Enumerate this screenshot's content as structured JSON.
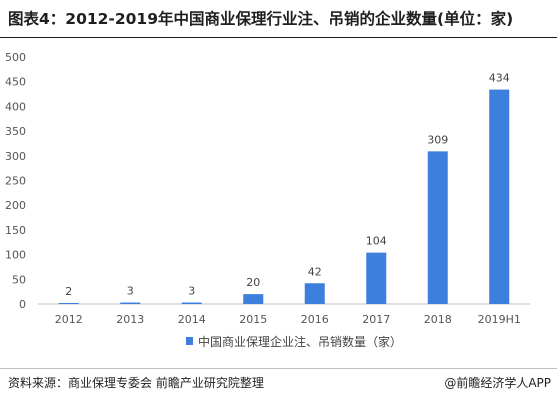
{
  "header": {
    "title": "图表4：2012-2019年中国商业保理行业注、吊销的企业数量(单位：家)"
  },
  "footer": {
    "source": "资料来源：商业保理专委会 前瞻产业研究院整理",
    "credit": "@前瞻经济学人APP"
  },
  "colors": {
    "bar": "#3d7fdc",
    "axis": "#bfbfbf"
  },
  "chart_data": {
    "type": "bar",
    "title": "",
    "xlabel": "",
    "ylabel": "",
    "categories": [
      "2012",
      "2013",
      "2014",
      "2015",
      "2016",
      "2017",
      "2018",
      "2019H1"
    ],
    "series": [
      {
        "name": "中国商业保理企业注、吊销数量（家）",
        "values": [
          2,
          3,
          3,
          20,
          42,
          104,
          309,
          434
        ]
      }
    ],
    "ylim": [
      0,
      500
    ],
    "yticks": [
      0,
      50,
      100,
      150,
      200,
      250,
      300,
      350,
      400,
      450,
      500
    ],
    "grid": false,
    "legend_position": "bottom"
  }
}
